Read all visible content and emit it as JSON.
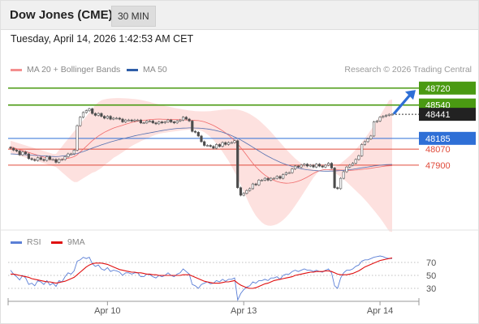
{
  "header": {
    "title": "Dow Jones (CME)",
    "interval": "30 MIN"
  },
  "timestamp": "Tuesday, April 14, 2026 1:42:53 AM CET",
  "legend": {
    "bollinger": {
      "label": "MA 20 + Bollinger Bands",
      "color": "#f48f8f"
    },
    "ma50": {
      "label": "MA 50",
      "color": "#2e5ea8"
    }
  },
  "credit": "Research © 2026 Trading Central",
  "rsi_legend": {
    "rsi": {
      "label": "RSI",
      "color": "#5b7fd6"
    },
    "ma9": {
      "label": "9MA",
      "color": "#e01010"
    }
  },
  "chart_data": [
    {
      "type": "candlestick",
      "ylim": [
        47330,
        48830
      ],
      "x_ticks": [
        "Apr 10",
        "Apr 13",
        "Apr 14"
      ],
      "levels": [
        {
          "value": 48720,
          "label": "48720",
          "kind": "resistance",
          "color": "#4a9a12"
        },
        {
          "value": 48540,
          "label": "48540",
          "kind": "resistance",
          "color": "#4a9a12"
        },
        {
          "value": 48441,
          "label": "48441",
          "kind": "last_price",
          "color": "#222222"
        },
        {
          "value": 48185,
          "label": "48185",
          "kind": "pivot",
          "color": "#2e6fd6"
        },
        {
          "value": 48070,
          "label": "48070",
          "kind": "support",
          "color": "#e04a3a"
        },
        {
          "value": 47900,
          "label": "47900",
          "kind": "support",
          "color": "#e04a3a"
        }
      ],
      "arrow": {
        "direction": "up",
        "color": "#2e6fd6",
        "from_value": 48445,
        "to_value": 48700
      },
      "close": [
        48080,
        48060,
        48050,
        48010,
        48040,
        48020,
        47970,
        47960,
        47950,
        47980,
        47960,
        47950,
        47990,
        47960,
        47960,
        47930,
        47960,
        47960,
        47990,
        48020,
        48020,
        48060,
        48320,
        48410,
        48460,
        48480,
        48500,
        48450,
        48430,
        48450,
        48420,
        48400,
        48420,
        48390,
        48400,
        48400,
        48390,
        48360,
        48380,
        48380,
        48370,
        48380,
        48380,
        48350,
        48350,
        48370,
        48370,
        48350,
        48340,
        48360,
        48350,
        48360,
        48380,
        48360,
        48350,
        48370,
        48380,
        48410,
        48390,
        48370,
        48260,
        48250,
        48210,
        48150,
        48110,
        48110,
        48100,
        48080,
        48120,
        48100,
        48140,
        48120,
        48140,
        48140,
        48160,
        47660,
        47580,
        47600,
        47630,
        47650,
        47700,
        47690,
        47740,
        47740,
        47760,
        47740,
        47760,
        47760,
        47780,
        47760,
        47800,
        47820,
        47820,
        47860,
        47890,
        47880,
        47900,
        47910,
        47890,
        47900,
        47880,
        47910,
        47890,
        47880,
        47900,
        47920,
        47870,
        47660,
        47650,
        47760,
        47830,
        47880,
        47900,
        47920,
        47960,
        48000,
        48120,
        48150,
        48180,
        48210,
        48360,
        48370,
        48410,
        48420,
        48430,
        48440,
        48441
      ],
      "ma20": [
        48095,
        48085,
        48075,
        48065,
        48055,
        48045,
        48035,
        48025,
        48015,
        48005,
        47995,
        47985,
        47975,
        47965,
        47955,
        47951,
        47956,
        47962,
        47968,
        47974,
        47980,
        47990,
        48010,
        48040,
        48070,
        48100,
        48130,
        48160,
        48185,
        48210,
        48230,
        48250,
        48265,
        48280,
        48295,
        48305,
        48315,
        48325,
        48335,
        48345,
        48355,
        48362,
        48368,
        48374,
        48378,
        48381,
        48384,
        48387,
        48389,
        48390,
        48389,
        48388,
        48387,
        48386,
        48385,
        48384,
        48383,
        48382,
        48381,
        48380,
        48378,
        48376,
        48374,
        48369,
        48361,
        48350,
        48337,
        48322,
        48305,
        48286,
        48266,
        48243,
        48219,
        48190,
        48160,
        48125,
        48087,
        48046,
        48004,
        47960,
        47920,
        47883,
        47850,
        47820,
        47794,
        47772,
        47754,
        47739,
        47726,
        47717,
        47711,
        47708,
        47709,
        47713,
        47720,
        47730,
        47742,
        47757,
        47773,
        47792,
        47811,
        47827,
        47840,
        47849,
        47853,
        47852,
        47851,
        47850,
        47849,
        47848,
        47847,
        47846,
        47845,
        47846,
        47848,
        47851,
        47855,
        47859,
        47863,
        47867,
        47872,
        47877,
        47882,
        47886,
        47890,
        47893,
        47895
      ],
      "bb_upper": [
        48160,
        48150,
        48140,
        48130,
        48120,
        48110,
        48100,
        48090,
        48080,
        48070,
        48060,
        48050,
        48040,
        48030,
        48020,
        48020,
        48060,
        48100,
        48140,
        48180,
        48220,
        48260,
        48300,
        48340,
        48380,
        48420,
        48460,
        48500,
        48540,
        48570,
        48590,
        48600,
        48606,
        48610,
        48613,
        48614,
        48614,
        48613,
        48611,
        48609,
        48606,
        48603,
        48599,
        48594,
        48588,
        48580,
        48572,
        48563,
        48554,
        48546,
        48538,
        48531,
        48524,
        48517,
        48511,
        48505,
        48499,
        48493,
        48487,
        48482,
        48478,
        48475,
        48473,
        48472,
        48472,
        48473,
        48475,
        48478,
        48482,
        48486,
        48490,
        48492,
        48494,
        48495,
        48494,
        48490,
        48483,
        48473,
        48460,
        48444,
        48425,
        48403,
        48378,
        48350,
        48320,
        48287,
        48253,
        48217,
        48180,
        48143,
        48106,
        48070,
        48035,
        48002,
        47971,
        47943,
        47918,
        47897,
        47880,
        47866,
        47856,
        47849,
        47846,
        47846,
        47850,
        47857,
        47868,
        47882,
        47899,
        47920,
        47944,
        47971,
        48000,
        48032,
        48067,
        48104,
        48143,
        48185,
        48229,
        48276,
        48324,
        48374,
        48426,
        48479,
        48534,
        48590,
        48600
      ],
      "bb_lower": [
        48030,
        48020,
        48010,
        48000,
        47990,
        47980,
        47970,
        47960,
        47950,
        47940,
        47930,
        47920,
        47910,
        47900,
        47890,
        47880,
        47852,
        47824,
        47796,
        47768,
        47740,
        47720,
        47720,
        47740,
        47760,
        47780,
        47800,
        47820,
        47830,
        47850,
        47870,
        47900,
        47924,
        47950,
        47977,
        47996,
        48016,
        48037,
        48059,
        48081,
        48104,
        48121,
        48137,
        48154,
        48168,
        48182,
        48196,
        48211,
        48224,
        48234,
        48240,
        48245,
        48250,
        48255,
        48259,
        48263,
        48267,
        48271,
        48275,
        48278,
        48278,
        48277,
        48275,
        48266,
        48250,
        48227,
        48199,
        48166,
        48128,
        48086,
        48042,
        47994,
        47944,
        47885,
        47826,
        47760,
        47691,
        47619,
        47548,
        47476,
        47415,
        47363,
        47322,
        47290,
        47268,
        47257,
        47255,
        47261,
        47272,
        47291,
        47316,
        47346,
        47383,
        47424,
        47469,
        47517,
        47566,
        47617,
        47666,
        47718,
        47766,
        47805,
        47834,
        47852,
        47856,
        47847,
        47834,
        47818,
        47799,
        47776,
        47750,
        47721,
        47690,
        47660,
        47629,
        47598,
        47567,
        47533,
        47497,
        47458,
        47420,
        47380,
        47338,
        47293,
        47246,
        47196,
        47190
      ],
      "ma50": [
        48020,
        48018,
        48016,
        48014,
        48012,
        48010,
        48008,
        48006,
        48004,
        48002,
        48000,
        47998,
        47996,
        47994,
        47992,
        47990,
        47993,
        47997,
        48001,
        48005,
        48010,
        48016,
        48024,
        48034,
        48045,
        48057,
        48069,
        48081,
        48093,
        48104,
        48115,
        48126,
        48136,
        48146,
        48155,
        48164,
        48172,
        48180,
        48188,
        48196,
        48204,
        48212,
        48219,
        48226,
        48232,
        48238,
        48244,
        48250,
        48256,
        48262,
        48268,
        48273,
        48278,
        48283,
        48287,
        48290,
        48292,
        48294,
        48295,
        48296,
        48296,
        48295,
        48294,
        48292,
        48289,
        48285,
        48280,
        48274,
        48267,
        48259,
        48250,
        48239,
        48227,
        48214,
        48200,
        48185,
        48168,
        48150,
        48131,
        48111,
        48091,
        48071,
        48051,
        48031,
        48012,
        47994,
        47977,
        47961,
        47946,
        47932,
        47919,
        47907,
        47896,
        47886,
        47877,
        47869,
        47862,
        47856,
        47851,
        47847,
        47844,
        47841,
        47839,
        47837,
        47836,
        47836,
        47837,
        47838,
        47840,
        47842,
        47845,
        47848,
        47852,
        47856,
        47861,
        47866,
        47871,
        47876,
        47881,
        47886,
        47891,
        47895,
        47899,
        47902,
        47905,
        47907,
        47908
      ]
    },
    {
      "type": "line",
      "name": "RSI",
      "ylim": [
        10,
        90
      ],
      "y_ticks": [
        70,
        50,
        30
      ],
      "series": [
        {
          "name": "RSI",
          "color": "#5b7fd6",
          "values": [
            58,
            52,
            48,
            43,
            50,
            46,
            36,
            38,
            34,
            42,
            40,
            36,
            42,
            35,
            38,
            33,
            42,
            40,
            48,
            54,
            52,
            57,
            72,
            74,
            78,
            76,
            78,
            68,
            64,
            66,
            60,
            58,
            62,
            56,
            58,
            57,
            55,
            50,
            54,
            54,
            52,
            54,
            54,
            48,
            48,
            52,
            51,
            48,
            46,
            50,
            48,
            50,
            54,
            50,
            48,
            52,
            54,
            60,
            56,
            52,
            36,
            34,
            30,
            36,
            38,
            40,
            37,
            38,
            42,
            40,
            44,
            41,
            44,
            44,
            46,
            12,
            22,
            28,
            32,
            34,
            40,
            38,
            42,
            42,
            44,
            42,
            46,
            46,
            48,
            44,
            50,
            52,
            52,
            56,
            58,
            56,
            58,
            60,
            58,
            58,
            56,
            58,
            56,
            55,
            58,
            60,
            54,
            34,
            30,
            46,
            54,
            58,
            58,
            60,
            64,
            66,
            72,
            74,
            74,
            76,
            78,
            79,
            80,
            79,
            77,
            76,
            76
          ]
        },
        {
          "name": "9MA",
          "color": "#e01010",
          "values": [
            52,
            52,
            51,
            50,
            49,
            48,
            47,
            45,
            44,
            43,
            42,
            41,
            40,
            40,
            39,
            38,
            39,
            40,
            41,
            43,
            45,
            47,
            51,
            55,
            59,
            63,
            66,
            68,
            69,
            69,
            69,
            68,
            67,
            65,
            63,
            61,
            59,
            58,
            57,
            56,
            55,
            55,
            54,
            54,
            53,
            52,
            52,
            51,
            51,
            50,
            50,
            50,
            50,
            50,
            50,
            50,
            50,
            51,
            51,
            51,
            49,
            47,
            45,
            43,
            41,
            40,
            39,
            38,
            38,
            38,
            39,
            40,
            40,
            41,
            42,
            38,
            35,
            33,
            31,
            30,
            30,
            31,
            33,
            35,
            37,
            38,
            40,
            42,
            43,
            44,
            45,
            46,
            47,
            48,
            50,
            51,
            52,
            53,
            54,
            55,
            55,
            56,
            56,
            56,
            57,
            57,
            56,
            54,
            52,
            51,
            51,
            51,
            52,
            53,
            55,
            57,
            60,
            63,
            65,
            67,
            69,
            71,
            73,
            74,
            75,
            76,
            77
          ]
        }
      ]
    }
  ]
}
